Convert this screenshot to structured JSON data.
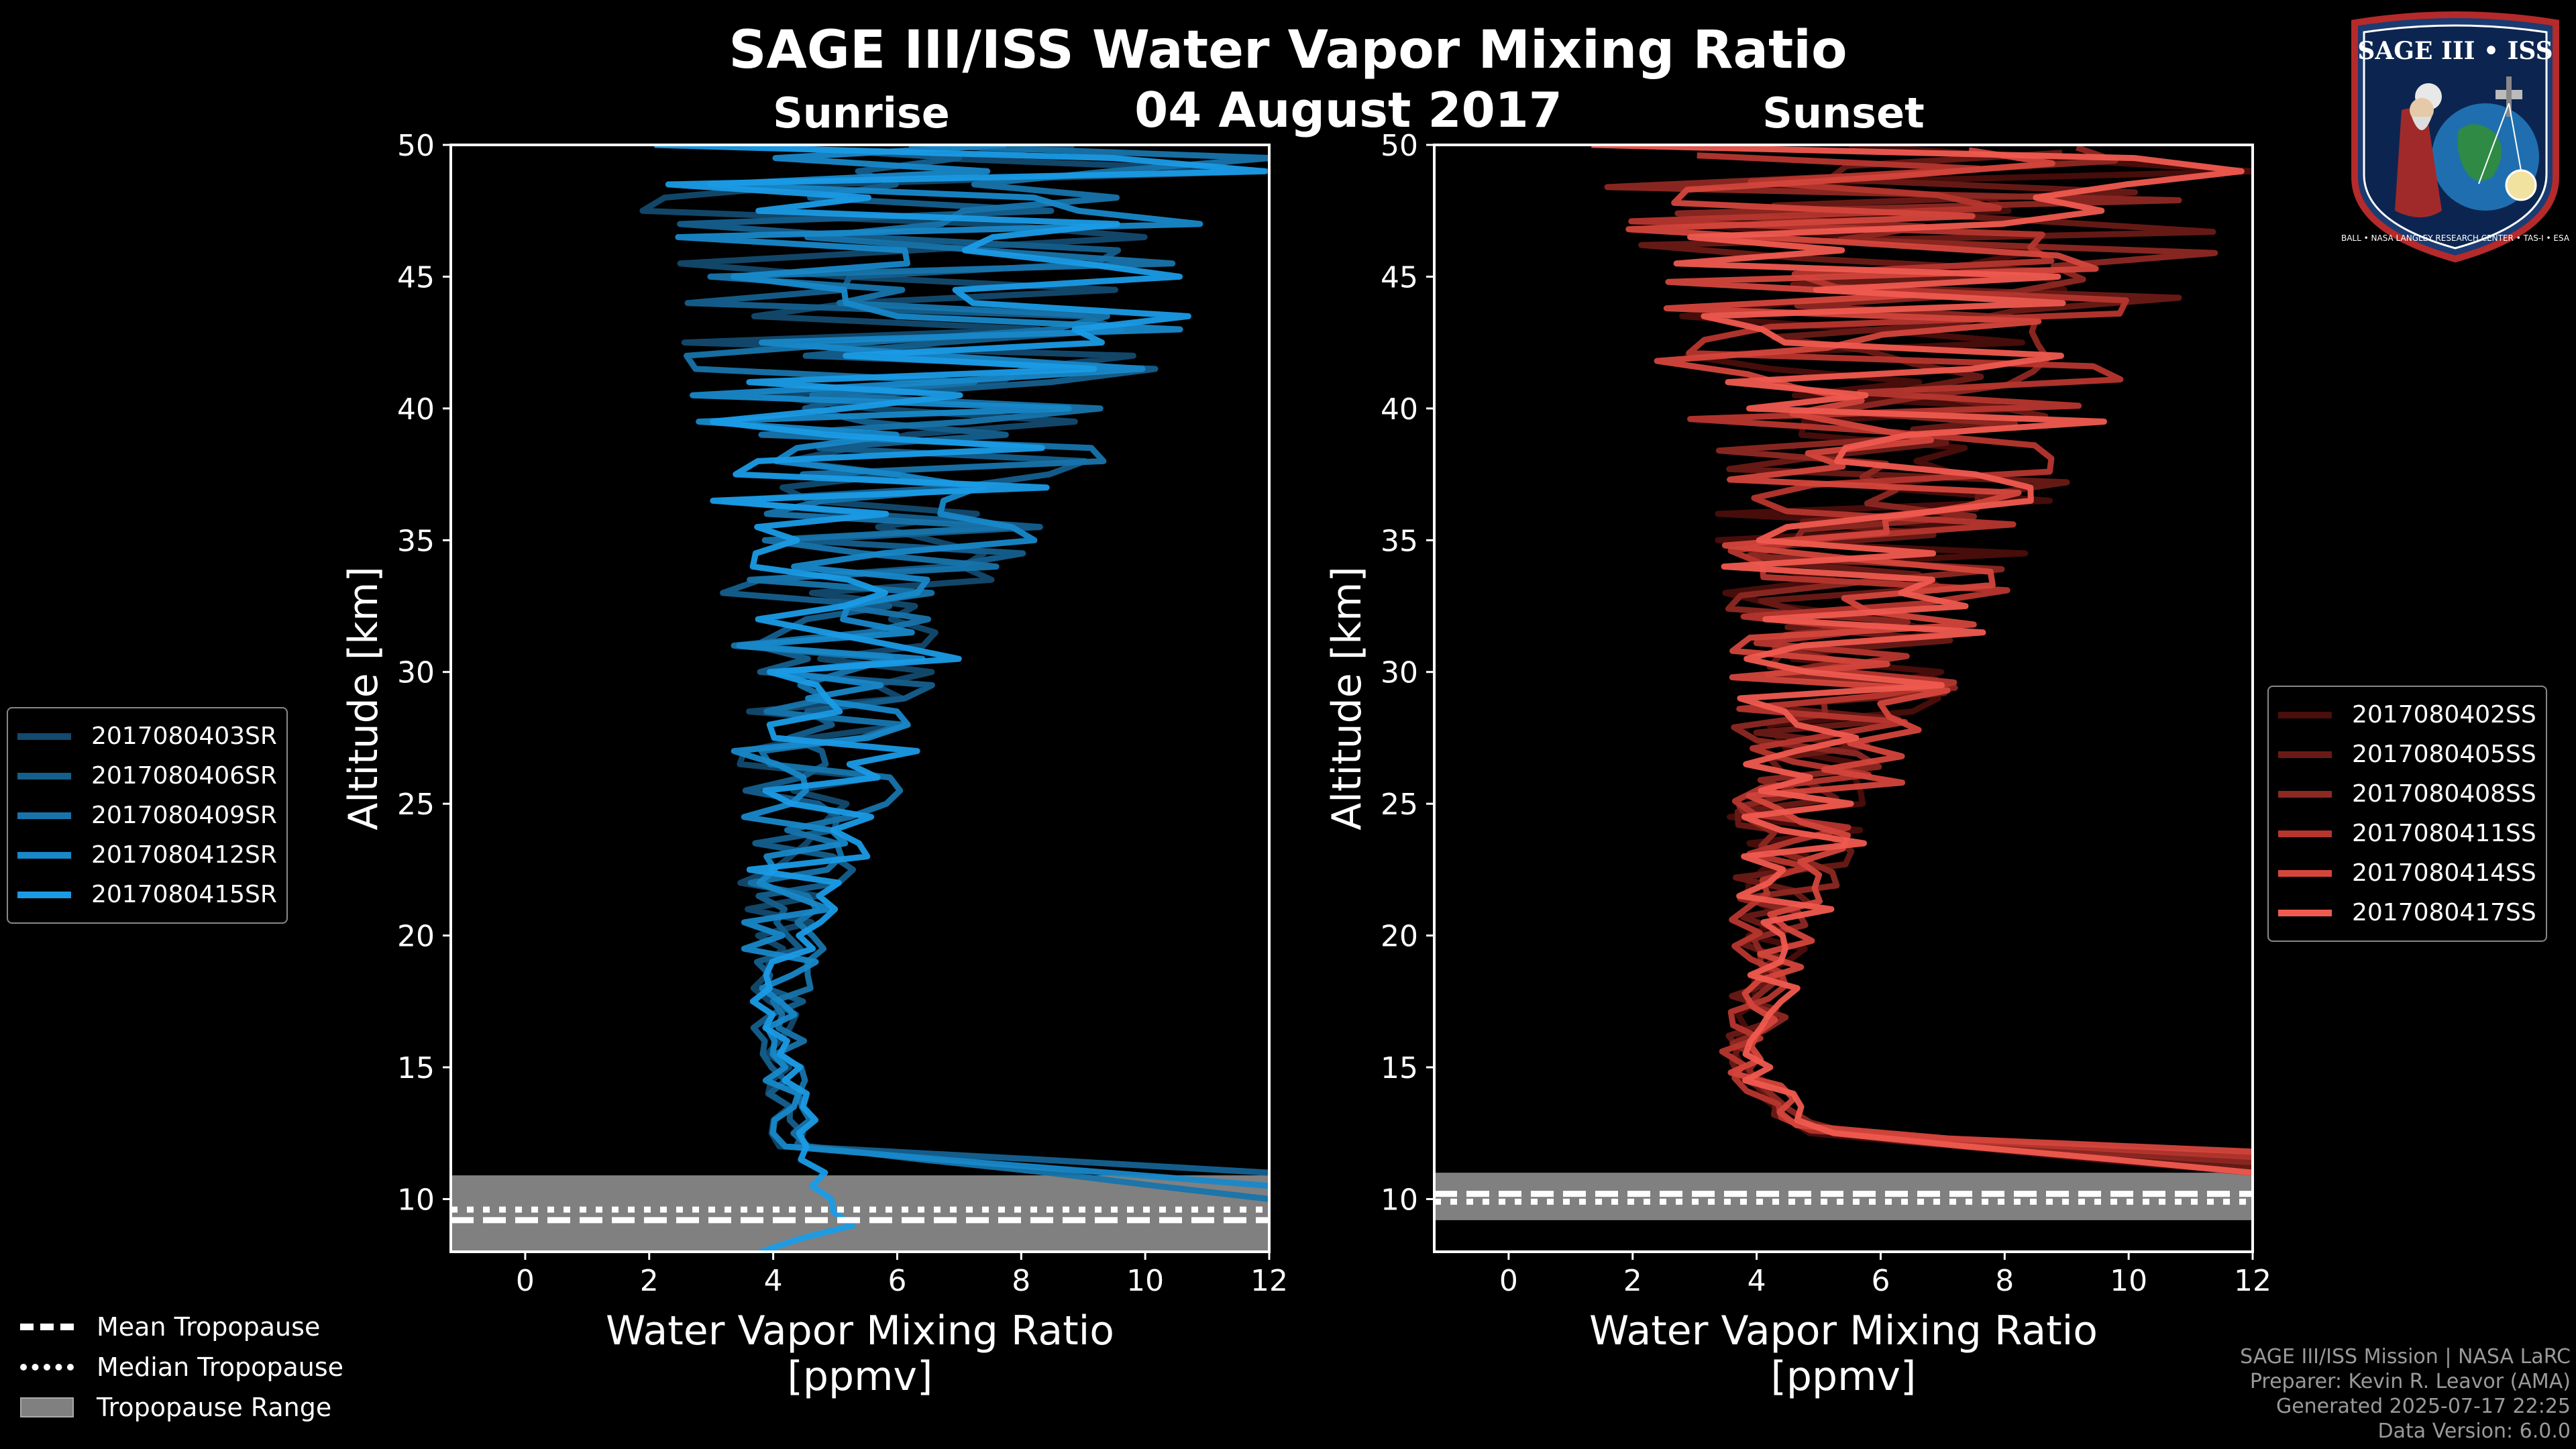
{
  "title": "SAGE III/ISS Water Vapor Mixing Ratio",
  "date": "04 August 2017",
  "colors": {
    "sunrise": [
      "#134a6e",
      "#155f8d",
      "#1774ab",
      "#1888c9",
      "#1a9be6"
    ],
    "sunset": [
      "#4a0e0c",
      "#6a1a16",
      "#8e2822",
      "#b6362e",
      "#d4463c",
      "#f05a4f"
    ],
    "tropopause": "#808080"
  },
  "chart_data": [
    {
      "type": "line",
      "title": "Sunrise",
      "xlabel": "Water Vapor Mixing Ratio",
      "xunit": "[ppmv]",
      "ylabel": "Altitude [km]",
      "xlim": [
        -1.2,
        12
      ],
      "ylim": [
        8,
        50
      ],
      "xticks": [
        "0",
        "2",
        "4",
        "6",
        "8",
        "10",
        "12"
      ],
      "yticks": [
        "10",
        "15",
        "20",
        "25",
        "30",
        "35",
        "40",
        "45",
        "50"
      ],
      "series": [
        {
          "name": "2017080403SR",
          "x_at_altitude": [
            {
              "alt": 11,
              "x": 12
            },
            {
              "alt": 12,
              "x": 4.2
            },
            {
              "alt": 18,
              "x": 3.9
            },
            {
              "alt": 25,
              "x": 4.6
            },
            {
              "alt": 30,
              "x": 5.2
            },
            {
              "alt": 35,
              "x": 5.8
            },
            {
              "alt": 40,
              "x": 6.2
            },
            {
              "alt": 45,
              "x": 6.6
            },
            {
              "alt": 50,
              "x": 6.8
            }
          ]
        },
        {
          "name": "2017080406SR",
          "x_at_altitude": [
            {
              "alt": 11,
              "x": 12
            },
            {
              "alt": 12,
              "x": 4.3
            },
            {
              "alt": 18,
              "x": 4.0
            },
            {
              "alt": 25,
              "x": 4.7
            },
            {
              "alt": 30,
              "x": 5.2
            },
            {
              "alt": 35,
              "x": 5.7
            },
            {
              "alt": 40,
              "x": 6.1
            },
            {
              "alt": 45,
              "x": 6.7
            },
            {
              "alt": 50,
              "x": 6.9
            }
          ]
        },
        {
          "name": "2017080409SR",
          "x_at_altitude": [
            {
              "alt": 10,
              "x": 12
            },
            {
              "alt": 12,
              "x": 4.4
            },
            {
              "alt": 18,
              "x": 4.1
            },
            {
              "alt": 25,
              "x": 4.8
            },
            {
              "alt": 30,
              "x": 5.3
            },
            {
              "alt": 35,
              "x": 5.8
            },
            {
              "alt": 40,
              "x": 6.3
            },
            {
              "alt": 45,
              "x": 6.5
            },
            {
              "alt": 50,
              "x": 7.0
            }
          ]
        },
        {
          "name": "2017080412SR",
          "x_at_altitude": [
            {
              "alt": 10.5,
              "x": 12
            },
            {
              "alt": 12,
              "x": 4.2
            },
            {
              "alt": 18,
              "x": 4.0
            },
            {
              "alt": 25,
              "x": 4.6
            },
            {
              "alt": 30,
              "x": 5.1
            },
            {
              "alt": 35,
              "x": 5.9
            },
            {
              "alt": 40,
              "x": 6.2
            },
            {
              "alt": 45,
              "x": 6.6
            },
            {
              "alt": 50,
              "x": 6.8
            }
          ]
        },
        {
          "name": "2017080415SR",
          "x_at_altitude": [
            {
              "alt": 8,
              "x": 3.8
            },
            {
              "alt": 9,
              "x": 5.2
            },
            {
              "alt": 12,
              "x": 4.5
            },
            {
              "alt": 18,
              "x": 4.1
            },
            {
              "alt": 25,
              "x": 4.7
            },
            {
              "alt": 30,
              "x": 5.3
            },
            {
              "alt": 35,
              "x": 5.8
            },
            {
              "alt": 40,
              "x": 6.3
            },
            {
              "alt": 45,
              "x": 6.6
            },
            {
              "alt": 50,
              "x": 6.8
            }
          ]
        }
      ],
      "tropopause": {
        "mean": 9.2,
        "median": 9.6,
        "range": [
          8.0,
          10.9
        ]
      }
    },
    {
      "type": "line",
      "title": "Sunset",
      "xlabel": "Water Vapor Mixing Ratio",
      "xunit": "[ppmv]",
      "ylabel": "Altitude [km]",
      "xlim": [
        -1.2,
        12
      ],
      "ylim": [
        8,
        50
      ],
      "xticks": [
        "0",
        "2",
        "4",
        "6",
        "8",
        "10",
        "12"
      ],
      "yticks": [
        "10",
        "15",
        "20",
        "25",
        "30",
        "35",
        "40",
        "45",
        "50"
      ],
      "series": [
        {
          "name": "2017080402SS",
          "x_at_altitude": [
            {
              "alt": 11,
              "x": 12
            },
            {
              "alt": 12.5,
              "x": 4.6
            },
            {
              "alt": 15,
              "x": 3.6
            },
            {
              "alt": 20,
              "x": 4.2
            },
            {
              "alt": 25,
              "x": 4.8
            },
            {
              "alt": 30,
              "x": 5.4
            },
            {
              "alt": 35,
              "x": 5.8
            },
            {
              "alt": 40,
              "x": 6.2
            },
            {
              "alt": 45,
              "x": 6.5
            },
            {
              "alt": 50,
              "x": 6.8
            }
          ]
        },
        {
          "name": "2017080405SS",
          "x_at_altitude": [
            {
              "alt": 11.2,
              "x": 12
            },
            {
              "alt": 12.5,
              "x": 4.8
            },
            {
              "alt": 15,
              "x": 3.8
            },
            {
              "alt": 20,
              "x": 4.3
            },
            {
              "alt": 25,
              "x": 4.9
            },
            {
              "alt": 30,
              "x": 5.4
            },
            {
              "alt": 35,
              "x": 5.9
            },
            {
              "alt": 40,
              "x": 6.3
            },
            {
              "alt": 45,
              "x": 6.6
            },
            {
              "alt": 50,
              "x": 6.9
            }
          ]
        },
        {
          "name": "2017080408SS",
          "x_at_altitude": [
            {
              "alt": 11.4,
              "x": 12
            },
            {
              "alt": 12.5,
              "x": 5.0
            },
            {
              "alt": 15,
              "x": 3.9
            },
            {
              "alt": 20,
              "x": 4.3
            },
            {
              "alt": 25,
              "x": 4.9
            },
            {
              "alt": 30,
              "x": 5.5
            },
            {
              "alt": 35,
              "x": 5.9
            },
            {
              "alt": 40,
              "x": 6.2
            },
            {
              "alt": 45,
              "x": 6.6
            },
            {
              "alt": 50,
              "x": 6.8
            }
          ]
        },
        {
          "name": "2017080411SS",
          "x_at_altitude": [
            {
              "alt": 11.6,
              "x": 12
            },
            {
              "alt": 12.5,
              "x": 4.7
            },
            {
              "alt": 15,
              "x": 3.7
            },
            {
              "alt": 20,
              "x": 4.2
            },
            {
              "alt": 25,
              "x": 4.8
            },
            {
              "alt": 30,
              "x": 5.4
            },
            {
              "alt": 35,
              "x": 5.8
            },
            {
              "alt": 40,
              "x": 6.3
            },
            {
              "alt": 45,
              "x": 6.5
            },
            {
              "alt": 50,
              "x": 6.9
            }
          ]
        },
        {
          "name": "2017080414SS",
          "x_at_altitude": [
            {
              "alt": 11.8,
              "x": 12
            },
            {
              "alt": 12.5,
              "x": 4.9
            },
            {
              "alt": 15,
              "x": 3.8
            },
            {
              "alt": 20,
              "x": 4.4
            },
            {
              "alt": 25,
              "x": 5.0
            },
            {
              "alt": 30,
              "x": 5.5
            },
            {
              "alt": 35,
              "x": 5.9
            },
            {
              "alt": 40,
              "x": 6.2
            },
            {
              "alt": 45,
              "x": 6.6
            },
            {
              "alt": 50,
              "x": 6.8
            }
          ]
        },
        {
          "name": "2017080417SS",
          "x_at_altitude": [
            {
              "alt": 11,
              "x": 12
            },
            {
              "alt": 12.5,
              "x": 5.0
            },
            {
              "alt": 15,
              "x": 3.9
            },
            {
              "alt": 20,
              "x": 4.3
            },
            {
              "alt": 25,
              "x": 4.9
            },
            {
              "alt": 30,
              "x": 5.6
            },
            {
              "alt": 35,
              "x": 6.0
            },
            {
              "alt": 40,
              "x": 6.4
            },
            {
              "alt": 45,
              "x": 6.7
            },
            {
              "alt": 50,
              "x": 6.9
            }
          ]
        }
      ],
      "tropopause": {
        "mean": 10.2,
        "median": 9.9,
        "range": [
          9.2,
          11.0
        ]
      }
    }
  ],
  "legend_bottom": {
    "mean": "Mean Tropopause",
    "median": "Median Tropopause",
    "range": "Tropopause Range"
  },
  "credits": {
    "line1": "SAGE III/ISS Mission | NASA LaRC",
    "line2": "Preparer: Kevin R. Leavor (AMA)",
    "line3": "Generated 2025-07-17 22:25",
    "line4": "Data Version: 6.0.0"
  },
  "logo": {
    "text": "SAGE III • ISS",
    "subtext": "BALL • NASA LANGLEY RESEARCH CENTER • TAS-I • ESA"
  }
}
